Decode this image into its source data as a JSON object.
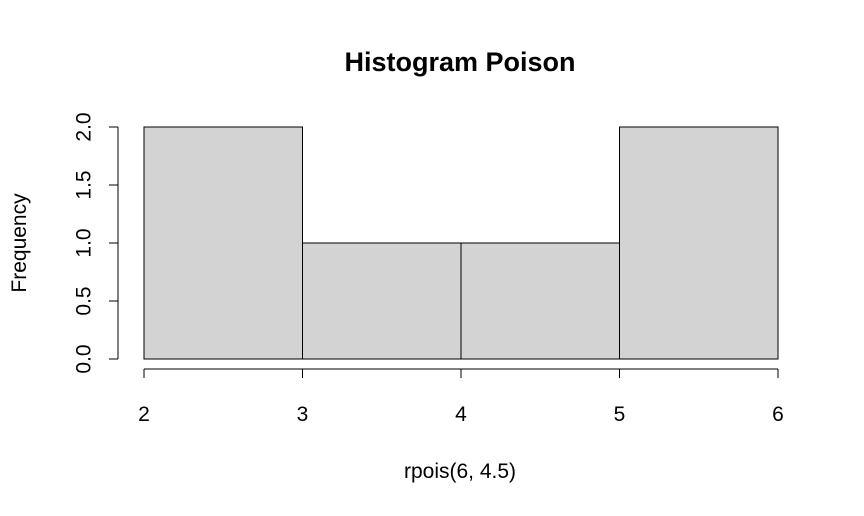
{
  "chart_data": {
    "type": "bar",
    "subtype": "histogram",
    "title": "Histogram Poison",
    "xlabel": "rpois(6, 4.5)",
    "ylabel": "Frequency",
    "bins": [
      {
        "start": 2,
        "end": 3,
        "count": 2
      },
      {
        "start": 3,
        "end": 4,
        "count": 1
      },
      {
        "start": 4,
        "end": 5,
        "count": 1
      },
      {
        "start": 5,
        "end": 6,
        "count": 2
      }
    ],
    "xlim": [
      2,
      6
    ],
    "ylim": [
      0,
      2
    ],
    "x_ticks": [
      "2",
      "3",
      "4",
      "5",
      "6"
    ],
    "y_ticks": [
      "0.0",
      "0.5",
      "1.0",
      "1.5",
      "2.0"
    ],
    "bar_color": "#d3d3d3",
    "grid": false,
    "legend": "none"
  }
}
